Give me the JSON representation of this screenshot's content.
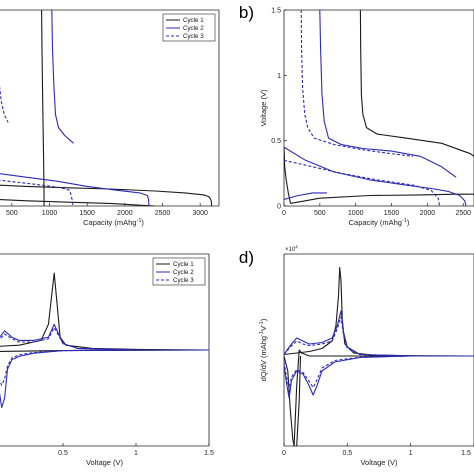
{
  "colors": {
    "cycle1": "#1a1a1a",
    "cycle2": "#2b2bb8",
    "cycle3": "#2b2bb8",
    "axis": "#222222"
  },
  "chart_data": [
    {
      "panel": "a",
      "type": "line",
      "panel_label": "",
      "xlabel": "Capacity (mAhg",
      "xlabel_sup": "-1",
      "xlabel_end": ")",
      "ylabel": "",
      "xlim": [
        210,
        3250
      ],
      "ylim": [
        0,
        1.5
      ],
      "x_ticks": [
        "500",
        "1000",
        "1500",
        "2000",
        "2500",
        "3000"
      ],
      "x_tick_values": [
        500,
        1000,
        1500,
        2000,
        2500,
        3000
      ],
      "x_tick_labels": [
        "500",
        "1000",
        "1500",
        "2000",
        "2500",
        "3000"
      ],
      "legend": [
        "Cycle 1",
        "Cycle 2",
        "Cycle 3"
      ],
      "legend_position": "top-right",
      "series": [
        {
          "name": "Cycle 1",
          "style": "solid",
          "color": "#1a1a1a",
          "x": [
            310,
            700,
            1200,
            1800,
            2400,
            2800,
            3050,
            3120,
            3140,
            3150,
            3150
          ],
          "y": [
            0.16,
            0.15,
            0.14,
            0.13,
            0.115,
            0.1,
            0.085,
            0.07,
            0.05,
            0.03,
            0.0
          ]
        },
        {
          "name": "Cycle 1",
          "style": "solid",
          "color": "#1a1a1a",
          "x": [
            2400,
            1800,
            1200,
            700,
            310
          ],
          "y": [
            0.0,
            0.02,
            0.03,
            0.04,
            0.05
          ]
        },
        {
          "name": "Cycle 1",
          "style": "solid",
          "color": "#1a1a1a",
          "x": [
            895,
            900,
            910,
            920,
            925,
            928
          ],
          "y": [
            1.5,
            1.2,
            0.8,
            0.4,
            0.2,
            0.0
          ]
        },
        {
          "name": "Cycle 2",
          "style": "solid",
          "color": "#2b2bb8",
          "x": [
            310,
            700,
            1100,
            1500,
            1900,
            2200,
            2300,
            2315,
            2320
          ],
          "y": [
            0.25,
            0.22,
            0.19,
            0.15,
            0.12,
            0.1,
            0.08,
            0.05,
            0.0
          ]
        },
        {
          "name": "Cycle 2",
          "style": "solid",
          "color": "#2b2bb8",
          "x": [
            1030,
            1040,
            1060,
            1080,
            1120,
            1200,
            1280,
            1320
          ],
          "y": [
            1.5,
            1.2,
            0.9,
            0.7,
            0.6,
            0.54,
            0.5,
            0.48
          ]
        },
        {
          "name": "Cycle 3",
          "style": "dashed",
          "color": "#2b2bb8",
          "x": [
            310,
            600,
            900,
            1150,
            1270,
            1300,
            1310
          ],
          "y": [
            0.2,
            0.18,
            0.16,
            0.14,
            0.12,
            0.05,
            0.0
          ]
        },
        {
          "name": "Cycle 3",
          "style": "dashed",
          "color": "#2b2bb8",
          "x": [
            310,
            330,
            360,
            400,
            450
          ],
          "y": [
            1.03,
            0.95,
            0.8,
            0.7,
            0.64
          ]
        }
      ]
    },
    {
      "panel": "b",
      "type": "line",
      "panel_label": "b)",
      "xlabel": "Capacity (mAhg",
      "xlabel_sup": "-1",
      "xlabel_end": ")",
      "ylabel": "Voltage (V)",
      "xlim": [
        0,
        2650
      ],
      "ylim": [
        0,
        1.5
      ],
      "x_tick_values": [
        0,
        500,
        1000,
        1500,
        2000,
        2500
      ],
      "x_tick_labels": [
        "0",
        "500",
        "1000",
        "1500",
        "2000",
        "2500"
      ],
      "y_tick_values": [
        0,
        0.5,
        1,
        1.5
      ],
      "y_tick_labels": [
        "0",
        "0.5",
        "1",
        "1.5"
      ],
      "series": [
        {
          "name": "Cycle 1",
          "style": "solid",
          "color": "#1a1a1a",
          "x": [
            0,
            10,
            30,
            60,
            90
          ],
          "y": [
            0.45,
            0.3,
            0.2,
            0.1,
            0.02
          ]
        },
        {
          "name": "Cycle 1",
          "style": "solid",
          "color": "#1a1a1a",
          "x": [
            90,
            500,
            1200,
            1900,
            2400,
            2650
          ],
          "y": [
            0.02,
            0.06,
            0.08,
            0.085,
            0.09,
            0.09
          ]
        },
        {
          "name": "Cycle 1",
          "style": "solid",
          "color": "#1a1a1a",
          "x": [
            1065,
            1070,
            1080,
            1100,
            1150,
            1300,
            1700,
            2200,
            2600,
            2650
          ],
          "y": [
            1.5,
            1.2,
            0.85,
            0.7,
            0.6,
            0.55,
            0.52,
            0.48,
            0.4,
            0.38
          ]
        },
        {
          "name": "Cycle 2",
          "style": "solid",
          "color": "#2b2bb8",
          "x": [
            0,
            300,
            700,
            1200,
            1700,
            2100,
            2300,
            2450,
            2520,
            2540
          ],
          "y": [
            0.45,
            0.35,
            0.26,
            0.2,
            0.16,
            0.13,
            0.11,
            0.08,
            0.04,
            0.0
          ]
        },
        {
          "name": "Cycle 2",
          "style": "solid",
          "color": "#2b2bb8",
          "x": [
            0,
            200,
            400,
            600
          ],
          "y": [
            0.05,
            0.08,
            0.1,
            0.1
          ]
        },
        {
          "name": "Cycle 2",
          "style": "solid",
          "color": "#2b2bb8",
          "x": [
            500,
            510,
            530,
            560,
            620,
            800,
            1100,
            1500,
            1900,
            2200,
            2400
          ],
          "y": [
            1.5,
            1.2,
            0.85,
            0.65,
            0.52,
            0.47,
            0.44,
            0.42,
            0.38,
            0.3,
            0.22
          ]
        },
        {
          "name": "Cycle 3",
          "style": "dashed",
          "color": "#2b2bb8",
          "x": [
            0,
            400,
            800,
            1300,
            1800,
            2050,
            2150,
            2170
          ],
          "y": [
            0.35,
            0.3,
            0.25,
            0.2,
            0.16,
            0.12,
            0.06,
            0.0
          ]
        },
        {
          "name": "Cycle 3",
          "style": "dashed",
          "color": "#2b2bb8",
          "x": [
            240,
            245,
            260,
            290,
            330,
            420,
            700,
            1100,
            1500,
            1800
          ],
          "y": [
            1.5,
            1.2,
            0.9,
            0.7,
            0.6,
            0.52,
            0.47,
            0.43,
            0.4,
            0.38
          ]
        }
      ]
    },
    {
      "panel": "c",
      "type": "line",
      "panel_label": "",
      "xlabel": "Voltage (V)",
      "ylabel": "",
      "xlim": [
        0,
        1.5
      ],
      "ylim": [
        -3,
        3
      ],
      "x_tick_values": [
        0.5,
        1,
        1.5
      ],
      "x_tick_labels": [
        "0.5",
        "1",
        "1.5"
      ],
      "legend": [
        "Cycle 1",
        "Cycle 2",
        "Cycle 3"
      ],
      "legend_position": "top-right",
      "series": [
        {
          "name": "Cycle 1",
          "style": "solid",
          "color": "#1a1a1a",
          "x": [
            0.0,
            0.2,
            0.35,
            0.4,
            0.42,
            0.44,
            0.46,
            0.48,
            0.52,
            0.7,
            1.0,
            1.5
          ],
          "y": [
            0.1,
            0.15,
            0.3,
            0.8,
            1.6,
            2.4,
            1.4,
            0.4,
            0.15,
            0.05,
            0.02,
            0.0
          ]
        },
        {
          "name": "Cycle 1",
          "style": "solid",
          "color": "#1a1a1a",
          "x": [
            0.0,
            0.5,
            1.0,
            1.5
          ],
          "y": [
            -0.05,
            -0.02,
            -0.01,
            0.0
          ]
        },
        {
          "name": "Cycle 2",
          "style": "solid",
          "color": "#2b2bb8",
          "x": [
            0.0,
            0.05,
            0.1,
            0.15,
            0.2,
            0.3,
            0.4,
            0.44,
            0.47,
            0.5,
            0.6,
            1.0,
            1.5
          ],
          "y": [
            0.05,
            0.3,
            0.6,
            0.4,
            0.3,
            0.3,
            0.4,
            0.8,
            0.5,
            0.2,
            0.05,
            0.0,
            0.0
          ]
        },
        {
          "name": "Cycle 2",
          "style": "solid",
          "color": "#2b2bb8",
          "x": [
            0.0,
            0.03,
            0.06,
            0.08,
            0.1,
            0.12,
            0.15,
            0.2,
            0.3,
            0.5,
            1.0,
            1.5
          ],
          "y": [
            -0.2,
            -0.6,
            -1.2,
            -1.8,
            -1.5,
            -0.6,
            -0.3,
            -0.2,
            -0.1,
            -0.02,
            0.0,
            0.0
          ]
        },
        {
          "name": "Cycle 3",
          "style": "dashed",
          "color": "#2b2bb8",
          "x": [
            0.0,
            0.05,
            0.1,
            0.15,
            0.2,
            0.3,
            0.4,
            0.44,
            0.47,
            0.5,
            0.6,
            1.0,
            1.5
          ],
          "y": [
            0.05,
            0.25,
            0.5,
            0.35,
            0.25,
            0.25,
            0.35,
            0.7,
            0.45,
            0.2,
            0.05,
            0.0,
            0.0
          ]
        },
        {
          "name": "Cycle 3",
          "style": "dashed",
          "color": "#2b2bb8",
          "x": [
            0.0,
            0.03,
            0.06,
            0.08,
            0.1,
            0.12,
            0.15,
            0.2,
            0.3,
            0.5,
            1.0,
            1.5
          ],
          "y": [
            -0.15,
            -0.5,
            -0.9,
            -1.1,
            -0.9,
            -0.5,
            -0.25,
            -0.15,
            -0.08,
            -0.02,
            0.0,
            0.0
          ]
        }
      ]
    },
    {
      "panel": "d",
      "type": "line",
      "panel_label": "d)",
      "xlabel": "Voltage (V)",
      "ylabel": "dQ/dV (mAhg",
      "ylabel_sup": "-1",
      "ylabel_mid": "V",
      "ylabel_end": ")",
      "scale_label": "×10",
      "scale_exp": "4",
      "xlim": [
        0,
        1.5
      ],
      "ylim": [
        -3,
        3.4
      ],
      "x_tick_values": [
        0,
        0.5,
        1,
        1.5
      ],
      "x_tick_labels": [
        "0",
        "0.5",
        "1",
        "1.5"
      ],
      "series": [
        {
          "name": "Cycle 1",
          "style": "solid",
          "color": "#1a1a1a",
          "x": [
            0.0,
            0.1,
            0.2,
            0.3,
            0.38,
            0.41,
            0.43,
            0.44,
            0.45,
            0.46,
            0.48,
            0.55,
            0.7,
            1.0,
            1.5
          ],
          "y": [
            0.05,
            0.1,
            0.15,
            0.25,
            0.5,
            1.0,
            2.0,
            2.95,
            2.5,
            1.2,
            0.4,
            0.1,
            0.03,
            0.01,
            0.0
          ]
        },
        {
          "name": "Cycle 1",
          "style": "solid",
          "color": "#1a1a1a",
          "x": [
            0.0,
            0.03,
            0.05,
            0.07,
            0.08,
            0.1,
            0.12,
            0.13
          ],
          "y": [
            0.0,
            -0.5,
            -1.8,
            -2.8,
            -3.0,
            -3.0,
            -1.5,
            0.0
          ]
        },
        {
          "name": "Cycle 1",
          "style": "solid",
          "color": "#1a1a1a",
          "x": [
            0.08,
            0.1,
            0.12,
            0.14,
            0.2,
            0.5,
            1.5
          ],
          "y": [
            -3.0,
            -1.0,
            0.2,
            0.1,
            0.0,
            0.0,
            0.0
          ]
        },
        {
          "name": "Cycle 2",
          "style": "solid",
          "color": "#2b2bb8",
          "x": [
            0.0,
            0.05,
            0.1,
            0.15,
            0.2,
            0.3,
            0.38,
            0.42,
            0.45,
            0.47,
            0.5,
            0.6,
            1.0,
            1.5
          ],
          "y": [
            0.05,
            0.35,
            0.6,
            0.5,
            0.4,
            0.45,
            0.6,
            1.0,
            1.5,
            0.8,
            0.3,
            0.05,
            0.0,
            0.0
          ]
        },
        {
          "name": "Cycle 2",
          "style": "solid",
          "color": "#2b2bb8",
          "x": [
            0.0,
            0.02,
            0.04,
            0.06,
            0.1,
            0.15,
            0.2,
            0.23,
            0.26,
            0.3,
            0.4,
            0.6,
            1.0,
            1.5
          ],
          "y": [
            -0.3,
            -0.9,
            -1.4,
            -0.8,
            -0.5,
            -0.6,
            -1.0,
            -1.3,
            -1.0,
            -0.5,
            -0.2,
            -0.05,
            0.0,
            0.0
          ]
        },
        {
          "name": "Cycle 3",
          "style": "dashed",
          "color": "#2b2bb8",
          "x": [
            0.0,
            0.05,
            0.1,
            0.15,
            0.2,
            0.3,
            0.38,
            0.42,
            0.45,
            0.47,
            0.5,
            0.6,
            1.0,
            1.5
          ],
          "y": [
            0.05,
            0.3,
            0.5,
            0.4,
            0.35,
            0.4,
            0.5,
            0.9,
            1.3,
            0.7,
            0.25,
            0.05,
            0.0,
            0.0
          ]
        },
        {
          "name": "Cycle 3",
          "style": "dashed",
          "color": "#2b2bb8",
          "x": [
            0.0,
            0.02,
            0.04,
            0.06,
            0.1,
            0.15,
            0.2,
            0.23,
            0.26,
            0.3,
            0.4,
            0.6,
            1.0,
            1.5
          ],
          "y": [
            -0.2,
            -0.7,
            -1.1,
            -0.7,
            -0.45,
            -0.55,
            -0.85,
            -1.05,
            -0.8,
            -0.4,
            -0.15,
            -0.04,
            0.0,
            0.0
          ]
        }
      ]
    }
  ]
}
